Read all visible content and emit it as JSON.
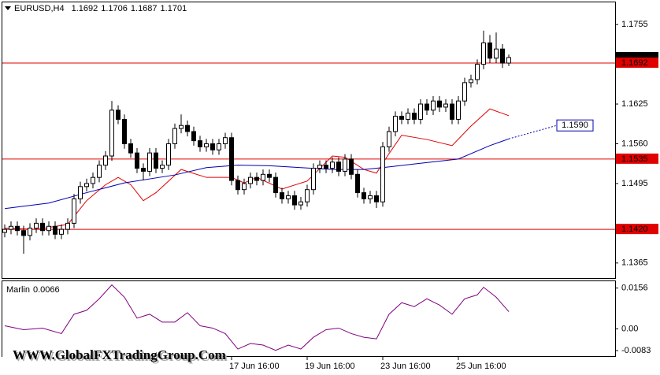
{
  "watermark": "WWW.GlobalFXTradingGroup.Com",
  "chart_data": [
    {
      "type": "candlestick",
      "title": "EURUSD,H4",
      "open": [
        1.1415,
        1.142,
        1.1425,
        1.1418,
        1.141,
        1.1422,
        1.143,
        1.1418,
        1.1425,
        1.1412,
        1.142,
        1.143,
        1.147,
        1.149,
        1.1495,
        1.1505,
        1.1525,
        1.154,
        1.1615,
        1.16,
        1.156,
        1.1545,
        1.152,
        1.1515,
        1.1545,
        1.152,
        1.1525,
        1.156,
        1.1585,
        1.159,
        1.158,
        1.1565,
        1.1555,
        1.156,
        1.155,
        1.156,
        1.157,
        1.15,
        1.1485,
        1.1495,
        1.1505,
        1.15,
        1.151,
        1.1505,
        1.148,
        1.147,
        1.1475,
        1.146,
        1.1465,
        1.1485,
        1.152,
        1.1525,
        1.152,
        1.153,
        1.1515,
        1.1535,
        1.151,
        1.148,
        1.147,
        1.1475,
        1.1465,
        1.1555,
        1.158,
        1.1605,
        1.16,
        1.161,
        1.16,
        1.1625,
        1.1615,
        1.163,
        1.162,
        1.1625,
        1.16,
        1.163,
        1.166,
        1.1665,
        1.169,
        1.1725,
        1.17,
        1.1715,
        1.1692
      ],
      "high": [
        1.1428,
        1.1433,
        1.1433,
        1.1426,
        1.143,
        1.1438,
        1.1438,
        1.1433,
        1.1433,
        1.1428,
        1.1438,
        1.1478,
        1.1498,
        1.1503,
        1.1513,
        1.1533,
        1.1548,
        1.163,
        1.1623,
        1.1608,
        1.1568,
        1.1553,
        1.1528,
        1.1553,
        1.1553,
        1.1533,
        1.1568,
        1.1593,
        1.1608,
        1.1598,
        1.1588,
        1.1573,
        1.1568,
        1.1568,
        1.1568,
        1.1578,
        1.1578,
        1.1508,
        1.1503,
        1.1513,
        1.1513,
        1.1518,
        1.1518,
        1.1513,
        1.1488,
        1.1483,
        1.1483,
        1.1473,
        1.1493,
        1.1528,
        1.1533,
        1.1533,
        1.1538,
        1.1538,
        1.1543,
        1.1543,
        1.1518,
        1.1488,
        1.1483,
        1.1483,
        1.1563,
        1.1588,
        1.1613,
        1.1613,
        1.1618,
        1.1618,
        1.1633,
        1.1633,
        1.1638,
        1.1638,
        1.1633,
        1.1633,
        1.1638,
        1.1668,
        1.1673,
        1.1698,
        1.1745,
        1.1738,
        1.1742,
        1.1723,
        1.1706
      ],
      "low": [
        1.1407,
        1.1412,
        1.141,
        1.138,
        1.1402,
        1.1414,
        1.141,
        1.141,
        1.1404,
        1.1404,
        1.1412,
        1.1422,
        1.1462,
        1.1482,
        1.1487,
        1.1497,
        1.1517,
        1.1532,
        1.1592,
        1.1552,
        1.1537,
        1.1512,
        1.15,
        1.1507,
        1.1512,
        1.1512,
        1.1517,
        1.1552,
        1.1577,
        1.1572,
        1.1557,
        1.1547,
        1.1547,
        1.1542,
        1.1542,
        1.1552,
        1.1492,
        1.1477,
        1.1477,
        1.1487,
        1.1492,
        1.1492,
        1.1497,
        1.1472,
        1.1462,
        1.1462,
        1.1452,
        1.1452,
        1.1457,
        1.1477,
        1.1512,
        1.1512,
        1.1512,
        1.1507,
        1.1507,
        1.1502,
        1.1472,
        1.1462,
        1.1462,
        1.1455,
        1.1457,
        1.1547,
        1.1572,
        1.1592,
        1.1592,
        1.1592,
        1.1592,
        1.1607,
        1.1607,
        1.1612,
        1.1612,
        1.1592,
        1.1592,
        1.1622,
        1.1652,
        1.1657,
        1.1682,
        1.1692,
        1.1692,
        1.1684,
        1.1687
      ],
      "close": [
        1.142,
        1.1425,
        1.1418,
        1.141,
        1.1422,
        1.143,
        1.1418,
        1.1425,
        1.1412,
        1.142,
        1.143,
        1.147,
        1.149,
        1.1495,
        1.1505,
        1.1525,
        1.154,
        1.1615,
        1.16,
        1.156,
        1.1545,
        1.152,
        1.1515,
        1.1545,
        1.152,
        1.1525,
        1.156,
        1.1585,
        1.159,
        1.158,
        1.1565,
        1.1555,
        1.156,
        1.155,
        1.156,
        1.157,
        1.15,
        1.1485,
        1.1495,
        1.1505,
        1.15,
        1.151,
        1.1505,
        1.148,
        1.147,
        1.1475,
        1.146,
        1.1465,
        1.1485,
        1.152,
        1.1525,
        1.152,
        1.153,
        1.1515,
        1.1535,
        1.151,
        1.148,
        1.147,
        1.1475,
        1.1465,
        1.1555,
        1.158,
        1.1605,
        1.16,
        1.161,
        1.16,
        1.1625,
        1.1615,
        1.163,
        1.162,
        1.1625,
        1.16,
        1.163,
        1.166,
        1.1665,
        1.169,
        1.1725,
        1.17,
        1.1715,
        1.1692,
        1.1701
      ],
      "bull_color": "#ffffff",
      "bear_color": "#000000",
      "series": [
        {
          "color": "#e00000",
          "x": [
            0,
            5,
            10,
            13,
            16,
            18,
            20,
            22,
            24,
            28,
            32,
            36,
            38,
            40,
            44,
            48,
            52,
            54,
            57,
            59,
            61,
            63,
            67,
            71,
            74,
            77,
            80
          ],
          "values": [
            1.1422,
            1.142,
            1.1428,
            1.1467,
            1.1493,
            1.1505,
            1.1493,
            1.1467,
            1.148,
            1.1518,
            1.1505,
            1.1505,
            1.1496,
            1.1505,
            1.1486,
            1.1499,
            1.154,
            1.1538,
            1.1518,
            1.1512,
            1.1544,
            1.1574,
            1.1567,
            1.1557,
            1.1589,
            1.1617,
            1.1606
          ]
        },
        {
          "color": "#0000b0",
          "x": [
            0,
            7,
            13,
            19,
            27,
            32,
            37,
            42,
            47,
            52,
            57,
            60,
            65,
            72,
            77,
            80
          ],
          "values": [
            1.1454,
            1.1463,
            1.148,
            1.1496,
            1.1509,
            1.1521,
            1.1525,
            1.1524,
            1.1521,
            1.1518,
            1.1518,
            1.1521,
            1.1527,
            1.1535,
            1.1557,
            1.1568
          ]
        }
      ],
      "levels": [
        1.1692,
        1.1535,
        {
          "value": 1.142,
          "label": "1.1420"
        }
      ],
      "level_color": "#e00000",
      "target": {
        "x": 88,
        "value": 1.159,
        "label": "1.1590"
      },
      "target_color": "#0000b0",
      "xlim": [
        -0.375,
        96.875
      ],
      "xticks": [
        {
          "value": 36,
          "label": "17 Jun 16:00"
        },
        {
          "value": 48,
          "label": "19 Jun 16:00"
        },
        {
          "value": 60,
          "label": "23 Jun 16:00"
        },
        {
          "value": 72,
          "label": "25 Jun 16:00"
        }
      ],
      "ylim": [
        1.1339,
        1.179
      ],
      "yticks": [
        1.1755,
        1.1625,
        {
          "value": 1.156,
          "label": "1.1560"
        },
        1.1495,
        1.1365
      ]
    },
    {
      "type": "line",
      "title": "Marlin",
      "color": "#800080",
      "x": [
        0,
        3,
        6,
        9,
        11,
        13,
        15,
        17,
        19,
        21,
        23,
        25,
        27,
        29,
        31,
        33,
        35,
        37,
        39,
        41,
        43,
        45,
        47,
        49,
        51,
        53,
        55,
        57,
        59,
        61,
        63,
        65,
        67,
        69,
        71,
        73,
        75,
        76,
        78,
        80
      ],
      "values": [
        0.0012,
        -0.0003,
        0.0003,
        -0.0018,
        0.0056,
        0.0071,
        0.0115,
        0.0168,
        0.0121,
        0.0041,
        0.0056,
        0.0026,
        0.0026,
        0.0062,
        0.0012,
        0.0003,
        -0.0018,
        -0.0077,
        -0.0056,
        -0.0062,
        -0.0082,
        -0.0062,
        -0.0077,
        -0.0032,
        -0.0003,
        0.0003,
        -0.0018,
        -0.0032,
        -0.0038,
        0.0056,
        0.01,
        0.0085,
        0.0115,
        0.0091,
        0.0056,
        0.0115,
        0.013,
        0.0159,
        0.0121,
        0.0066
      ],
      "ylim": [
        -0.0104,
        0.0182
      ],
      "yticks": [
        0.0156,
        {
          "value": 0,
          "label": "0.00"
        },
        -0.0083
      ]
    }
  ]
}
